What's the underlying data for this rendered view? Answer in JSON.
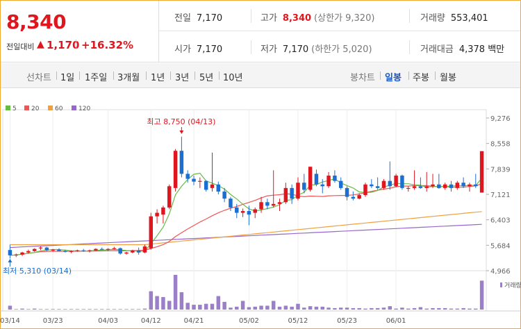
{
  "quote": {
    "price": "8,340",
    "change_label": "전일대비",
    "change_arrow": "▲",
    "change_value": "1,170",
    "change_pct": "+16.32%",
    "prev_close_label": "전일",
    "prev_close": "7,170",
    "high_label": "고가",
    "high": "8,340",
    "upper_limit": "(상한가 9,320)",
    "volume_label": "거래량",
    "volume": "553,401",
    "open_label": "시가",
    "open": "7,170",
    "low_label": "저가",
    "low": "7,170",
    "lower_limit": "(하한가 5,020)",
    "amount_label": "거래대금",
    "amount": "4,378 백만"
  },
  "toolbar": {
    "line_label": "선차트",
    "periods": [
      "1일",
      "1주일",
      "3개월",
      "1년",
      "3년",
      "5년",
      "10년"
    ],
    "candle_label": "봉차트",
    "candle_types": [
      "일봉",
      "주봉",
      "월봉"
    ],
    "active_candle": "일봉"
  },
  "chart_data": {
    "type": "candlestick",
    "legend": [
      "5",
      "20",
      "60",
      "120"
    ],
    "colors": {
      "ma5": "#66bb44",
      "ma20": "#ee5555",
      "ma60": "#f0a040",
      "ma120": "#9966cc",
      "up": "#e0161f",
      "down": "#1a6fd0",
      "volume": "#9b7fc8"
    },
    "y_ticks": [
      "9,276",
      "8,558",
      "7,839",
      "7,121",
      "6,403",
      "5,684",
      "4,966"
    ],
    "ylim": [
      4966,
      9276
    ],
    "x_ticks": [
      "03/14",
      "03/23",
      "04/03",
      "04/12",
      "04/21",
      "05/02",
      "05/12",
      "05/23",
      "06/01"
    ],
    "high_note": "최고 8,750 (04/13)",
    "low_note": "최저 5,310 (03/14)",
    "volume_label": "거래량",
    "candles": [
      [
        5550,
        5700,
        5310,
        5400
      ],
      [
        5400,
        5450,
        5350,
        5420
      ],
      [
        5420,
        5500,
        5380,
        5480
      ],
      [
        5480,
        5560,
        5450,
        5520
      ],
      [
        5520,
        5600,
        5500,
        5580
      ],
      [
        5600,
        5650,
        5550,
        5620
      ],
      [
        5620,
        5640,
        5520,
        5540
      ],
      [
        5540,
        5580,
        5500,
        5560
      ],
      [
        5560,
        5600,
        5520,
        5520
      ],
      [
        5520,
        5560,
        5480,
        5500
      ],
      [
        5500,
        5540,
        5460,
        5520
      ],
      [
        5520,
        5560,
        5500,
        5540
      ],
      [
        5540,
        5580,
        5500,
        5520
      ],
      [
        5520,
        5560,
        5480,
        5540
      ],
      [
        5540,
        5600,
        5520,
        5580
      ],
      [
        5580,
        5620,
        5550,
        5560
      ],
      [
        5560,
        5600,
        5520,
        5580
      ],
      [
        5580,
        5640,
        5560,
        5600
      ],
      [
        5600,
        5620,
        5420,
        5450
      ],
      [
        5450,
        5500,
        5420,
        5480
      ],
      [
        5480,
        5560,
        5460,
        5540
      ],
      [
        5540,
        5620,
        5420,
        5480
      ],
      [
        5480,
        5700,
        5460,
        5650
      ],
      [
        5600,
        6600,
        5560,
        6500
      ],
      [
        6500,
        6700,
        6300,
        6600
      ],
      [
        6550,
        6800,
        6300,
        6750
      ],
      [
        6750,
        7400,
        6700,
        7350
      ],
      [
        7300,
        8400,
        7200,
        8350
      ],
      [
        8350,
        8750,
        7600,
        7700
      ],
      [
        7700,
        7800,
        7450,
        7560
      ],
      [
        7560,
        7650,
        7380,
        7480
      ],
      [
        7480,
        7600,
        7300,
        7500
      ],
      [
        7500,
        7520,
        7200,
        7250
      ],
      [
        7300,
        8300,
        7200,
        7400
      ],
      [
        7400,
        7480,
        7120,
        7200
      ],
      [
        7200,
        7300,
        6900,
        7000
      ],
      [
        7000,
        7050,
        6650,
        6750
      ],
      [
        6750,
        6850,
        6450,
        6600
      ],
      [
        6600,
        6720,
        6480,
        6650
      ],
      [
        6650,
        6800,
        6250,
        6550
      ],
      [
        6600,
        6750,
        6450,
        6700
      ],
      [
        6700,
        7050,
        6600,
        6900
      ],
      [
        6900,
        7000,
        6700,
        6800
      ],
      [
        6800,
        7800,
        6750,
        6850
      ],
      [
        6850,
        7000,
        6650,
        6900
      ],
      [
        6900,
        7450,
        6850,
        7300
      ],
      [
        7300,
        7400,
        6850,
        7000
      ],
      [
        7000,
        7600,
        6950,
        7450
      ],
      [
        7450,
        7700,
        7150,
        7250
      ],
      [
        7250,
        7900,
        7200,
        7900
      ],
      [
        7700,
        7820,
        7350,
        7400
      ],
      [
        7400,
        7550,
        7150,
        7350
      ],
      [
        7350,
        7750,
        7300,
        7650
      ],
      [
        7650,
        7800,
        7450,
        7500
      ],
      [
        7500,
        7600,
        7250,
        7300
      ],
      [
        7300,
        7350,
        6950,
        7050
      ],
      [
        7050,
        7200,
        6950,
        7000
      ],
      [
        7000,
        7150,
        6980,
        7100
      ],
      [
        7100,
        7450,
        7050,
        7400
      ],
      [
        7400,
        7550,
        7300,
        7350
      ],
      [
        7350,
        7600,
        7250,
        7300
      ],
      [
        7300,
        7550,
        7250,
        7500
      ],
      [
        7500,
        8050,
        7250,
        7350
      ],
      [
        7350,
        7700,
        7320,
        7650
      ],
      [
        7650,
        7680,
        7250,
        7300
      ],
      [
        7300,
        7350,
        7200,
        7300
      ],
      [
        7300,
        7800,
        7250,
        7350
      ],
      [
        7350,
        7600,
        7280,
        7300
      ],
      [
        7300,
        7750,
        7200,
        7350
      ],
      [
        7350,
        7700,
        7300,
        7400
      ],
      [
        7400,
        7700,
        7280,
        7300
      ],
      [
        7300,
        7450,
        7250,
        7400
      ],
      [
        7400,
        7500,
        7200,
        7300
      ],
      [
        7300,
        7500,
        7250,
        7450
      ],
      [
        7450,
        7600,
        7300,
        7350
      ],
      [
        7350,
        7450,
        7200,
        7400
      ],
      [
        7400,
        7700,
        7300,
        7350
      ],
      [
        7170,
        8340,
        7170,
        8340
      ]
    ],
    "volumes": [
      8,
      1,
      2,
      1,
      2,
      1,
      1,
      1,
      1,
      1,
      1,
      1,
      1,
      1,
      1,
      1,
      1,
      1,
      1,
      1,
      1,
      1,
      2,
      38,
      28,
      26,
      18,
      72,
      36,
      14,
      10,
      10,
      12,
      12,
      28,
      16,
      4,
      6,
      18,
      5,
      6,
      8,
      8,
      18,
      6,
      8,
      6,
      12,
      4,
      7,
      6,
      6,
      4,
      3,
      4,
      4,
      3,
      3,
      2,
      3,
      3,
      4,
      7,
      2,
      4,
      2,
      3,
      5,
      2,
      3,
      3,
      3,
      2,
      2,
      3,
      2,
      2,
      60
    ]
  }
}
